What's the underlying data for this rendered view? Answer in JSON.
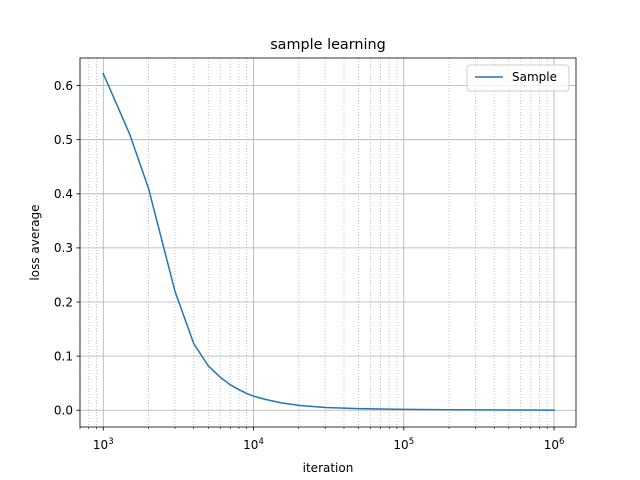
{
  "chart_data": {
    "type": "line",
    "title": "sample learning",
    "xlabel": "iteration",
    "ylabel": "loss average",
    "xscale": "log",
    "xlim": [
      700,
      1400000
    ],
    "ylim": [
      -0.031,
      0.651
    ],
    "x_ticks": [
      {
        "value": 1000,
        "base": "10",
        "exp": "3"
      },
      {
        "value": 10000,
        "base": "10",
        "exp": "4"
      },
      {
        "value": 100000,
        "base": "10",
        "exp": "5"
      },
      {
        "value": 1000000,
        "base": "10",
        "exp": "6"
      }
    ],
    "y_ticks": [
      {
        "value": 0.0,
        "label": "0.0"
      },
      {
        "value": 0.1,
        "label": "0.1"
      },
      {
        "value": 0.2,
        "label": "0.2"
      },
      {
        "value": 0.3,
        "label": "0.3"
      },
      {
        "value": 0.4,
        "label": "0.4"
      },
      {
        "value": 0.5,
        "label": "0.5"
      },
      {
        "value": 0.6,
        "label": "0.6"
      }
    ],
    "grid": {
      "major": true,
      "minor_x": true
    },
    "legend": {
      "position": "top-right"
    },
    "colors": {
      "series": "#1f77b4",
      "grid": "#b0b0b0",
      "axis": "#000000"
    },
    "series": [
      {
        "name": "Sample",
        "x": [
          1000,
          1500,
          2000,
          3000,
          4000,
          5000,
          6000,
          7000,
          8000,
          9000,
          10000,
          12000,
          15000,
          20000,
          30000,
          50000,
          100000,
          200000,
          500000,
          1000000
        ],
        "y": [
          0.622,
          0.51,
          0.41,
          0.22,
          0.123,
          0.082,
          0.061,
          0.047,
          0.038,
          0.031,
          0.026,
          0.02,
          0.014,
          0.009,
          0.005,
          0.003,
          0.0015,
          0.0008,
          0.0003,
          0.0001
        ]
      }
    ]
  }
}
